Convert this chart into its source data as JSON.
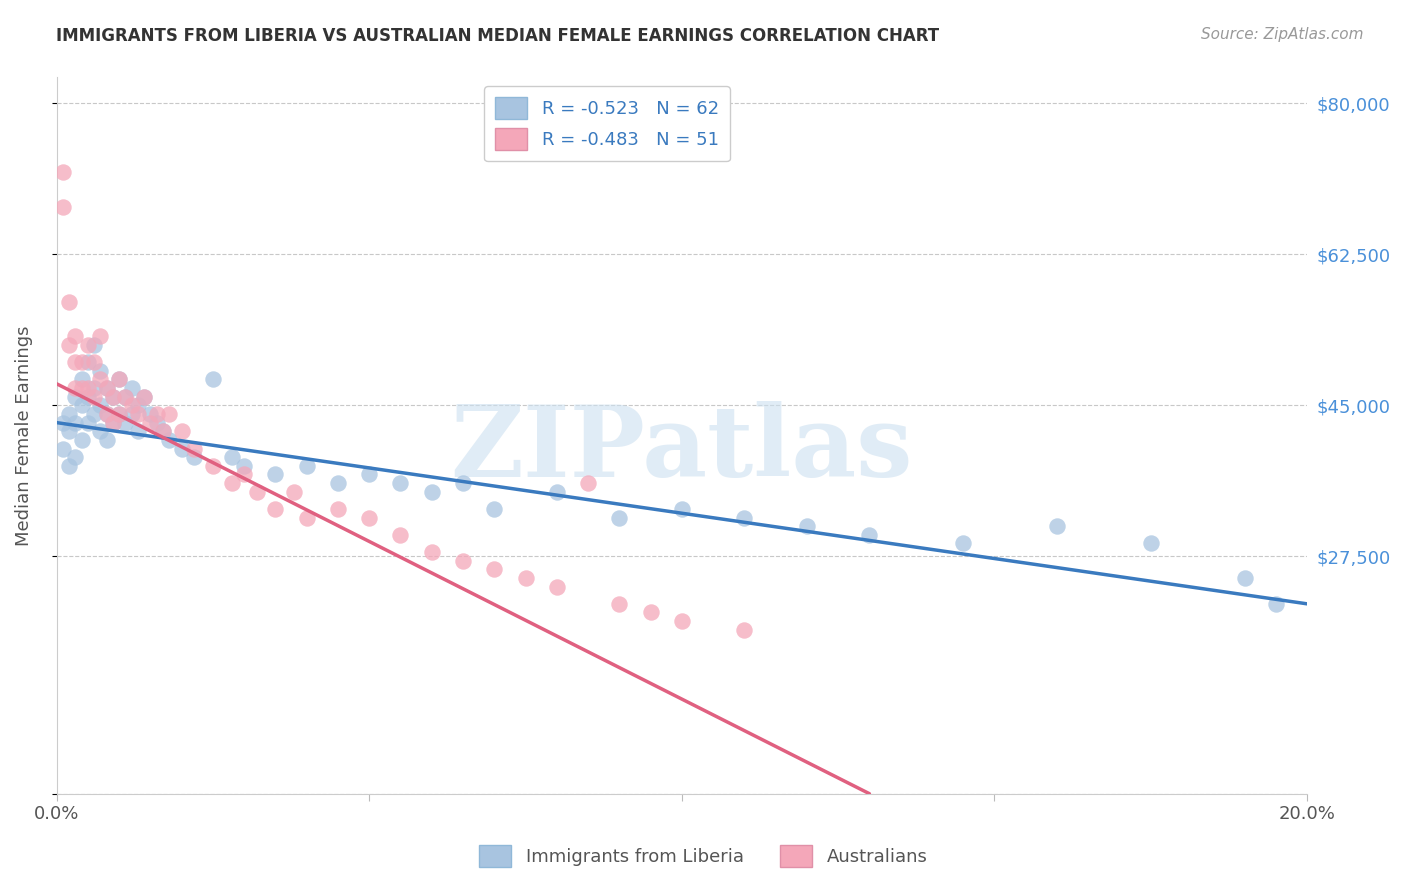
{
  "title": "IMMIGRANTS FROM LIBERIA VS AUSTRALIAN MEDIAN FEMALE EARNINGS CORRELATION CHART",
  "source": "Source: ZipAtlas.com",
  "ylabel": "Median Female Earnings",
  "yticks": [
    0,
    27500,
    45000,
    62500,
    80000
  ],
  "ytick_labels": [
    "",
    "$27,500",
    "$45,000",
    "$62,500",
    "$80,000"
  ],
  "xmin": 0.0,
  "xmax": 0.2,
  "ymin": 0,
  "ymax": 83000,
  "legend_line1": "R = -0.523   N = 62",
  "legend_line2": "R = -0.483   N = 51",
  "blue_color": "#a8c4e0",
  "pink_color": "#f4a7b9",
  "blue_line_color": "#3a7abf",
  "pink_line_color": "#e06080",
  "watermark_text": "ZIPatlas",
  "series1_label": "Immigrants from Liberia",
  "series2_label": "Australians",
  "blue_x": [
    0.001,
    0.001,
    0.002,
    0.002,
    0.002,
    0.003,
    0.003,
    0.003,
    0.004,
    0.004,
    0.004,
    0.005,
    0.005,
    0.005,
    0.006,
    0.006,
    0.006,
    0.007,
    0.007,
    0.007,
    0.008,
    0.008,
    0.008,
    0.009,
    0.009,
    0.01,
    0.01,
    0.011,
    0.011,
    0.012,
    0.012,
    0.013,
    0.013,
    0.014,
    0.015,
    0.016,
    0.017,
    0.018,
    0.02,
    0.022,
    0.025,
    0.028,
    0.03,
    0.035,
    0.04,
    0.045,
    0.05,
    0.055,
    0.06,
    0.065,
    0.07,
    0.08,
    0.09,
    0.1,
    0.11,
    0.12,
    0.13,
    0.145,
    0.16,
    0.175,
    0.19,
    0.195
  ],
  "blue_y": [
    43000,
    40000,
    44000,
    42000,
    38000,
    46000,
    43000,
    39000,
    48000,
    45000,
    41000,
    50000,
    46000,
    43000,
    52000,
    47000,
    44000,
    49000,
    45000,
    42000,
    47000,
    44000,
    41000,
    46000,
    43000,
    48000,
    44000,
    46000,
    43000,
    47000,
    44000,
    45000,
    42000,
    46000,
    44000,
    43000,
    42000,
    41000,
    40000,
    39000,
    48000,
    39000,
    38000,
    37000,
    38000,
    36000,
    37000,
    36000,
    35000,
    36000,
    33000,
    35000,
    32000,
    33000,
    32000,
    31000,
    30000,
    29000,
    31000,
    29000,
    25000,
    22000
  ],
  "pink_x": [
    0.001,
    0.001,
    0.002,
    0.002,
    0.003,
    0.003,
    0.003,
    0.004,
    0.004,
    0.005,
    0.005,
    0.006,
    0.006,
    0.007,
    0.007,
    0.008,
    0.008,
    0.009,
    0.009,
    0.01,
    0.01,
    0.011,
    0.012,
    0.013,
    0.014,
    0.015,
    0.016,
    0.017,
    0.018,
    0.02,
    0.022,
    0.025,
    0.028,
    0.03,
    0.032,
    0.035,
    0.038,
    0.04,
    0.045,
    0.05,
    0.055,
    0.06,
    0.065,
    0.07,
    0.075,
    0.08,
    0.085,
    0.09,
    0.095,
    0.1,
    0.11
  ],
  "pink_y": [
    72000,
    68000,
    57000,
    52000,
    53000,
    50000,
    47000,
    50000,
    47000,
    52000,
    47000,
    50000,
    46000,
    53000,
    48000,
    47000,
    44000,
    46000,
    43000,
    48000,
    44000,
    46000,
    45000,
    44000,
    46000,
    43000,
    44000,
    42000,
    44000,
    42000,
    40000,
    38000,
    36000,
    37000,
    35000,
    33000,
    35000,
    32000,
    33000,
    32000,
    30000,
    28000,
    27000,
    26000,
    25000,
    24000,
    36000,
    22000,
    21000,
    20000,
    19000
  ],
  "blue_trend_x": [
    0.0,
    0.2
  ],
  "blue_trend_y": [
    43000,
    22000
  ],
  "pink_trend_x": [
    0.0,
    0.13
  ],
  "pink_trend_y": [
    47500,
    0
  ],
  "background_color": "#ffffff",
  "grid_color": "#c8c8c8",
  "title_color": "#333333",
  "source_color": "#999999",
  "axis_label_color": "#555555",
  "right_ytick_color": "#4a90d9",
  "watermark_color": "#cce0f0",
  "watermark_alpha": 0.6
}
